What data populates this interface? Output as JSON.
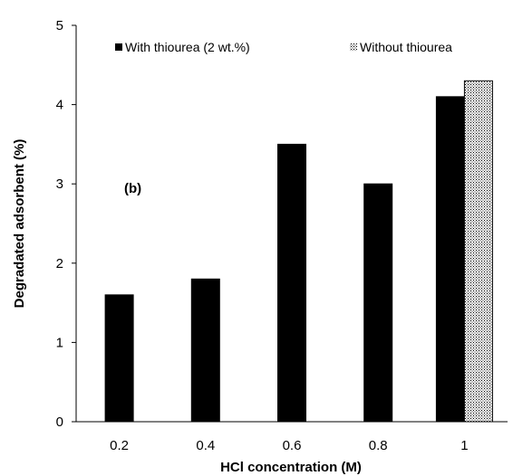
{
  "chart_data": {
    "type": "bar",
    "title": "",
    "xlabel": "HCl concentration (M)",
    "ylabel": "Degradated adsorbent (%)",
    "ylim": [
      0,
      5
    ],
    "yticks": [
      "0",
      "1",
      "2",
      "3",
      "4",
      "5"
    ],
    "categories": [
      "0.2",
      "0.4",
      "0.6",
      "0.8",
      "1"
    ],
    "series": [
      {
        "name": "With thiourea (2 wt.%)",
        "color": "#000000",
        "pattern": "solid",
        "values": [
          1.6,
          1.8,
          3.5,
          3.0,
          4.1
        ]
      },
      {
        "name": "Without thiourea",
        "color": "#ffffff",
        "pattern": "dotted",
        "values": [
          null,
          null,
          null,
          null,
          4.3
        ]
      }
    ],
    "annotation": "(b)",
    "legend_position": "top",
    "grid": false
  }
}
